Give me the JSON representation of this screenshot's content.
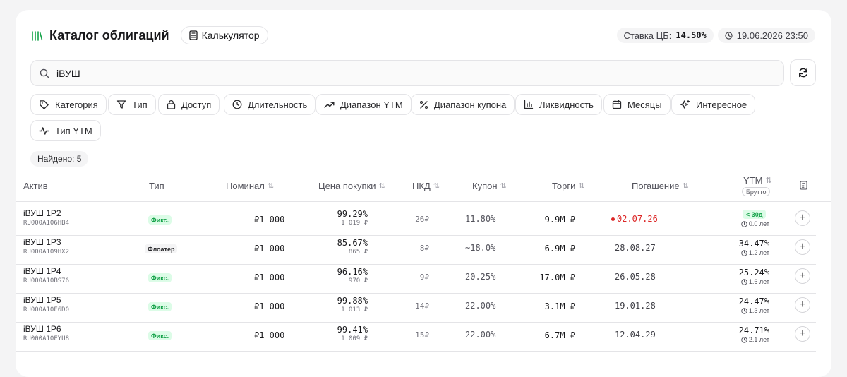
{
  "header": {
    "title": "Каталог облигаций",
    "calculator_label": "Калькулятор",
    "rate_label": "Ставка ЦБ:",
    "rate_value": "14.50%",
    "datetime": "19.06.2026 23:50"
  },
  "search": {
    "value": "iВУШ"
  },
  "filters": [
    "Категория",
    "Тип",
    "Доступ",
    "Длительность",
    "Диапазон YTM",
    "Диапазон купона",
    "Ликвидность",
    "Месяцы",
    "Интересное",
    "Тип YTM"
  ],
  "found_label": "Найдено: 5",
  "table": {
    "columns": {
      "asset": "Актив",
      "type": "Тип",
      "nominal": "Номинал",
      "price": "Цена покупки",
      "nkd": "НКД",
      "coupon": "Купон",
      "volume": "Торги",
      "maturity": "Погашение",
      "ytm": "YTM",
      "ytm_sub": "Брутто",
      "sort_glyph": "⇅"
    },
    "rows": [
      {
        "name": "iВУШ 1P2",
        "isin": "RU000A106HB4",
        "type": "Фикс.",
        "type_kind": "fix",
        "nominal": "₽1 000",
        "price_pct": "99.29%",
        "price_rub": "1 019 ₽",
        "nkd": "26₽",
        "coupon": "11.80%",
        "volume": "9.9M ₽",
        "maturity": "02.07.26",
        "maturity_warn": true,
        "ytm": "",
        "ytm_badge": "< 30д",
        "years": "0.0 лет"
      },
      {
        "name": "iВУШ 1P3",
        "isin": "RU000A109HX2",
        "type": "Флоатер",
        "type_kind": "float",
        "nominal": "₽1 000",
        "price_pct": "85.67%",
        "price_rub": "865 ₽",
        "nkd": "8₽",
        "coupon": "~18.0%",
        "volume": "6.9M ₽",
        "maturity": "28.08.27",
        "maturity_warn": false,
        "ytm": "34.47%",
        "ytm_badge": "",
        "years": "1.2 лет"
      },
      {
        "name": "iВУШ 1P4",
        "isin": "RU000A10BS76",
        "type": "Фикс.",
        "type_kind": "fix",
        "nominal": "₽1 000",
        "price_pct": "96.16%",
        "price_rub": "970 ₽",
        "nkd": "9₽",
        "coupon": "20.25%",
        "volume": "17.0M ₽",
        "maturity": "26.05.28",
        "maturity_warn": false,
        "ytm": "25.24%",
        "ytm_badge": "",
        "years": "1.6 лет"
      },
      {
        "name": "iВУШ 1P5",
        "isin": "RU000A10E6D0",
        "type": "Фикс.",
        "type_kind": "fix",
        "nominal": "₽1 000",
        "price_pct": "99.88%",
        "price_rub": "1 013 ₽",
        "nkd": "14₽",
        "coupon": "22.00%",
        "volume": "3.1M ₽",
        "maturity": "19.01.28",
        "maturity_warn": false,
        "ytm": "24.47%",
        "ytm_badge": "",
        "years": "1.3 лет"
      },
      {
        "name": "iВУШ 1P6",
        "isin": "RU000A10EYU8",
        "type": "Фикс.",
        "type_kind": "fix",
        "nominal": "₽1 000",
        "price_pct": "99.41%",
        "price_rub": "1 009 ₽",
        "nkd": "15₽",
        "coupon": "22.00%",
        "volume": "6.7M ₽",
        "maturity": "12.04.29",
        "maturity_warn": false,
        "ytm": "24.71%",
        "ytm_badge": "",
        "years": "2.1 лет"
      }
    ]
  },
  "add_glyph": "+",
  "colors": {
    "accent": "#16a34a",
    "danger": "#dc2626",
    "badge_bg": "#dcfce7"
  }
}
